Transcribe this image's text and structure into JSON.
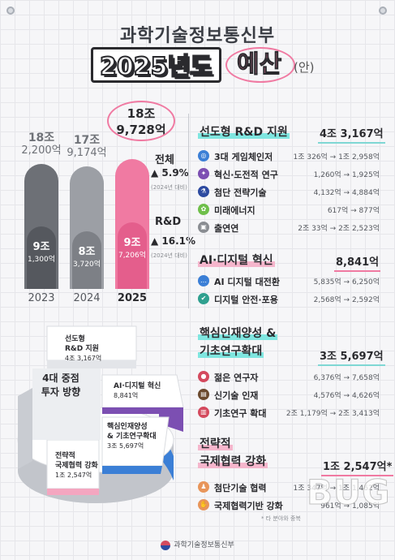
{
  "header": {
    "ministry": "과학기술정보통신부",
    "year_title": "2025년도",
    "budget_word": "예산",
    "draft": "(안)"
  },
  "colors": {
    "accent_pink": "#f07aa2",
    "accent_teal": "#7fd7d4",
    "bar_2023": "#6d7076",
    "bar_2024": "#9c9fa5",
    "bar_2025": "#f07aa2",
    "donut_blue": "#3b7fd6",
    "donut_purple": "#7c4fb2",
    "donut_pink": "#f4a6c0",
    "donut_gray": "#c9ccd2"
  },
  "chart_data": {
    "type": "bar",
    "categories": [
      "2023",
      "2024",
      "2025"
    ],
    "series": [
      {
        "values": [
          182200,
          179174,
          189728
        ]
      },
      {
        "name": "R&D",
        "values": [
          91300,
          83720,
          97206
        ]
      }
    ],
    "total_labels": [
      [
        "18조",
        "2,200억"
      ],
      [
        "17조",
        "9,174억"
      ],
      [
        "18조",
        "9,728억"
      ]
    ],
    "rnd_labels": [
      [
        "9조",
        "1,300억"
      ],
      [
        "8조",
        "3,720억"
      ],
      [
        "9조",
        "7,206억"
      ]
    ],
    "ylabel": "",
    "unit": "억"
  },
  "stats": {
    "total_label": "전체",
    "total_growth": "5.9%",
    "total_note": "(2024년 대비)",
    "rnd_label": "R&D",
    "rnd_growth": "16.1%",
    "rnd_note": "(2024년 대비)"
  },
  "sections": [
    {
      "title": "선도형 R&D 지원",
      "total": "4조 3,167억",
      "items": [
        {
          "icon": "target-icon",
          "label": "3대 게임체인저",
          "value": "1조 326억 → 1조 2,958억",
          "color": "#3b7fd6"
        },
        {
          "icon": "bulb-icon",
          "label": "혁신·도전적 연구",
          "value": "1,260억 → 1,925억",
          "color": "#7c4fb2"
        },
        {
          "icon": "microscope-icon",
          "label": "첨단 전략기술",
          "value": "4,132억 → 4,884억",
          "color": "#2d4aa0"
        },
        {
          "icon": "plant-icon",
          "label": "미래에너지",
          "value": "617억 → 877억",
          "color": "#6fbf4a"
        },
        {
          "icon": "building-icon",
          "label": "출연연",
          "value": "2조 33억 → 2조 2,523억",
          "color": "#8a8d92"
        }
      ]
    },
    {
      "title": "AI·디지털 혁신",
      "total": "8,841억",
      "items": [
        {
          "icon": "chat-icon",
          "label": "AI 디지털 대전환",
          "value": "5,835억 → 6,250억",
          "color": "#3b7fd6"
        },
        {
          "icon": "shield-icon",
          "label": "디지털 안전·포용",
          "value": "2,568억 → 2,592억",
          "color": "#2fa08f"
        }
      ]
    },
    {
      "title_line1": "핵심인재양성 &",
      "title_line2": "기초연구확대",
      "total": "3조 5,697억",
      "items": [
        {
          "icon": "person-icon",
          "label": "젊은 연구자",
          "value": "6,376억 → 7,658억",
          "color": "#d44a5e"
        },
        {
          "icon": "briefcase-icon",
          "label": "신기술 인재",
          "value": "4,576억 → 4,626억",
          "color": "#6b4a2e"
        },
        {
          "icon": "book-icon",
          "label": "기초연구 확대",
          "value": "2조 1,179억 → 2조 3,413억",
          "color": "#d44a5e"
        }
      ]
    },
    {
      "title_line1": "전략적",
      "title_line2": "국제협력 강화",
      "total": "1조 2,547억*",
      "items": [
        {
          "icon": "people-icon",
          "label": "첨단기술 협력",
          "value": "1조 347억 → 1조 1,462억",
          "color": "#e8955a"
        },
        {
          "icon": "handshake-icon",
          "label": "국제협력기반 강화",
          "value": "961억 → 1,085억",
          "color": "#e8955a"
        }
      ]
    }
  ],
  "footnote": "* 타 분야와 중복",
  "donut": {
    "center": [
      "4대 중점",
      "투자 방향"
    ],
    "segments": [
      {
        "title": "선도형",
        "title2": "R&D 지원",
        "amount": "4조 3,167억"
      },
      {
        "title": "AI·디지털 혁신",
        "amount": "8,841억"
      },
      {
        "title": "핵심인재양성",
        "title2": "& 기초연구확대",
        "amount": "3조 5,697억"
      },
      {
        "title": "전략적",
        "title2": "국제협력 강화",
        "amount": "1조 2,547억"
      }
    ]
  },
  "footer": {
    "org": "과학기술정보통신부"
  },
  "watermark": "BUG"
}
